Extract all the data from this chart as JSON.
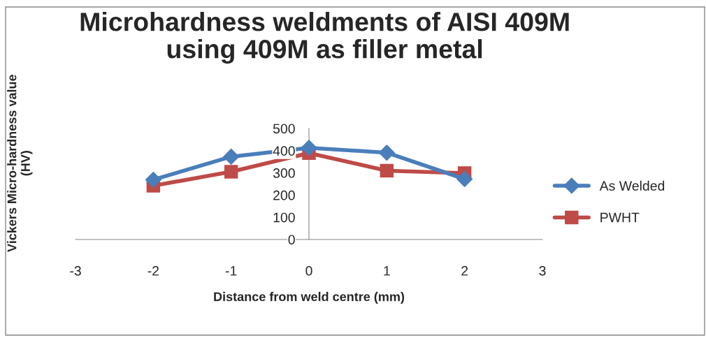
{
  "chart_data": {
    "type": "line",
    "title": "Microhardness weldments of AISI 409M\nusing 409M as filler metal",
    "xlabel": "Distance from weld centre (mm)",
    "ylabel": "Vickers Micro-hardness value\n(HV)",
    "x": [
      -2,
      -1,
      0,
      1,
      2
    ],
    "series": [
      {
        "name": "As Welded",
        "color": "#4a7ebb",
        "marker": "diamond",
        "values": [
          269,
          373,
          413,
          391,
          272
        ]
      },
      {
        "name": "PWHT",
        "color": "#be4b48",
        "marker": "square",
        "values": [
          242,
          305,
          389,
          310,
          299
        ]
      }
    ],
    "xlim": [
      -3,
      3
    ],
    "xticks": [
      -3,
      -2,
      -1,
      0,
      1,
      2,
      3
    ],
    "ylim": [
      0,
      500
    ],
    "yticks": [
      0,
      100,
      200,
      300,
      400,
      500
    ],
    "grid": false,
    "legend": "right",
    "line_style": "solid"
  }
}
